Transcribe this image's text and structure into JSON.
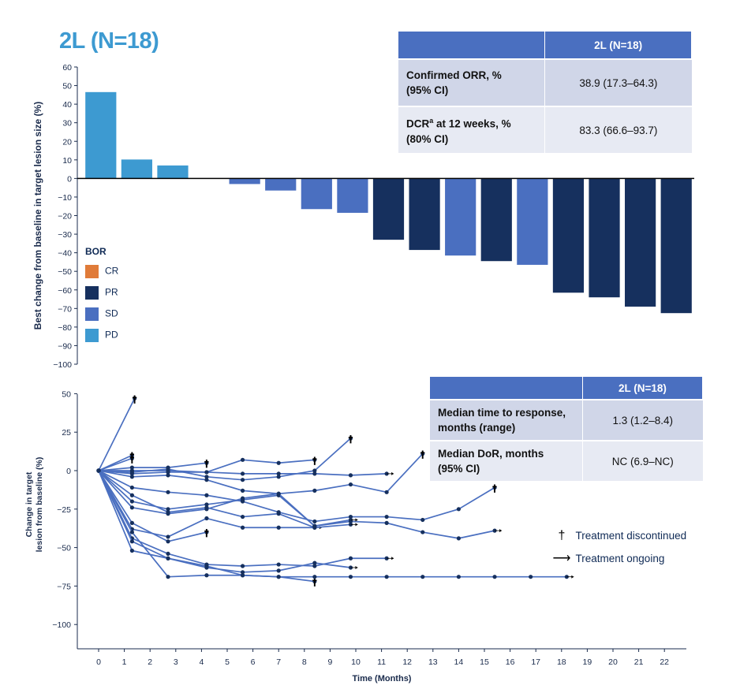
{
  "panel_title": "2L (N=18)",
  "table_top": {
    "header": [
      "",
      "2L (N=18)"
    ],
    "rows": [
      {
        "label_line1": "Confirmed ORR, %",
        "label_line2": "(95% CI)",
        "value": "38.9 (17.3–64.3)"
      },
      {
        "label_line1": "DCR",
        "label_sup": "a",
        "label_line1_rest": " at 12 weeks, %",
        "label_line2": "(80% CI)",
        "value": "83.3 (66.6–93.7)"
      }
    ]
  },
  "table_bottom": {
    "header": [
      "",
      "2L (N=18)"
    ],
    "rows": [
      {
        "label_line1": "Median time to response,",
        "label_line2": "months (range)",
        "value": "1.3 (1.2–8.4)"
      },
      {
        "label_line1": "Median DoR, months",
        "label_line2": "(95% CI)",
        "value": "NC (6.9–NC)"
      }
    ]
  },
  "legend_bor": {
    "title": "BOR",
    "items": [
      {
        "label": "CR",
        "color": "#e07b39"
      },
      {
        "label": "PR",
        "color": "#16305e"
      },
      {
        "label": "SD",
        "color": "#4a6fc0"
      },
      {
        "label": "PD",
        "color": "#3d9ad1"
      }
    ]
  },
  "legend_spider": [
    {
      "symbol": "†",
      "label": "Treatment discontinued"
    },
    {
      "symbol": "⟶",
      "label": "Treatment ongoing"
    }
  ],
  "chart_data": [
    {
      "type": "bar",
      "subtype": "waterfall",
      "ylabel": "Best change from baseline in target lesion size (%)",
      "ylim": [
        -100,
        60
      ],
      "yticks": [
        60,
        50,
        40,
        30,
        20,
        10,
        0,
        -10,
        -20,
        -30,
        -40,
        -50,
        -60,
        -70,
        -80,
        -90,
        -100
      ],
      "bars": [
        {
          "value": 46.5,
          "bor": "PD"
        },
        {
          "value": 10.2,
          "bor": "PD"
        },
        {
          "value": 7.0,
          "bor": "PD"
        },
        {
          "value": 0.0,
          "bor": "SD"
        },
        {
          "value": -3.0,
          "bor": "SD"
        },
        {
          "value": -6.5,
          "bor": "SD"
        },
        {
          "value": -16.5,
          "bor": "SD"
        },
        {
          "value": -18.5,
          "bor": "SD"
        },
        {
          "value": -33.0,
          "bor": "PR"
        },
        {
          "value": -38.5,
          "bor": "PR"
        },
        {
          "value": -41.5,
          "bor": "SD"
        },
        {
          "value": -44.5,
          "bor": "PR"
        },
        {
          "value": -46.5,
          "bor": "SD"
        },
        {
          "value": -61.5,
          "bor": "PR"
        },
        {
          "value": -64.0,
          "bor": "PR"
        },
        {
          "value": -69.0,
          "bor": "PR"
        },
        {
          "value": -72.5,
          "bor": "PR"
        }
      ],
      "legend": "left"
    },
    {
      "type": "line",
      "subtype": "spider",
      "xlabel": "Time (Months)",
      "ylabel": "Change in target lesion from baseline (%)",
      "xlim": [
        -0.8,
        23.5
      ],
      "ylim": [
        -115,
        50
      ],
      "xticks": [
        0,
        1,
        2,
        3,
        4,
        5,
        6,
        7,
        8,
        9,
        10,
        11,
        12,
        13,
        14,
        15,
        16,
        17,
        18,
        19,
        20,
        21,
        22
      ],
      "yticks": [
        50,
        25,
        0,
        -25,
        -50,
        -75,
        -100
      ],
      "series": [
        {
          "points": [
            [
              0,
              0
            ],
            [
              1.4,
              47
            ]
          ],
          "end": "discontinued"
        },
        {
          "points": [
            [
              0,
              0
            ],
            [
              1.3,
              10
            ]
          ],
          "end": "discontinued"
        },
        {
          "points": [
            [
              0,
              0
            ],
            [
              1.3,
              8
            ]
          ],
          "end": "discontinued"
        },
        {
          "points": [
            [
              0,
              0
            ],
            [
              1.3,
              2
            ],
            [
              2.7,
              2
            ],
            [
              4.2,
              5
            ]
          ],
          "end": "discontinued"
        },
        {
          "points": [
            [
              0,
              0
            ],
            [
              1.3,
              0
            ],
            [
              2.7,
              0
            ],
            [
              4.2,
              -1
            ],
            [
              5.6,
              7
            ],
            [
              7.0,
              5
            ],
            [
              8.4,
              7
            ]
          ],
          "end": "discontinued"
        },
        {
          "points": [
            [
              0,
              0
            ],
            [
              1.3,
              -1
            ],
            [
              2.7,
              1
            ],
            [
              4.2,
              -4
            ],
            [
              5.6,
              -6
            ],
            [
              7.0,
              -4
            ],
            [
              8.4,
              0
            ],
            [
              9.8,
              21
            ]
          ],
          "end": "discontinued"
        },
        {
          "points": [
            [
              0,
              0
            ],
            [
              1.3,
              -2
            ],
            [
              2.7,
              -1
            ],
            [
              4.2,
              -1
            ],
            [
              5.6,
              -2
            ],
            [
              7.0,
              -2
            ],
            [
              8.4,
              -2
            ],
            [
              9.8,
              -3
            ],
            [
              11.2,
              -2
            ]
          ],
          "end": "ongoing"
        },
        {
          "points": [
            [
              0,
              0
            ],
            [
              1.3,
              -4
            ],
            [
              2.7,
              -3
            ],
            [
              4.2,
              -6
            ],
            [
              5.6,
              -13
            ],
            [
              7.0,
              -15
            ],
            [
              8.4,
              -13
            ],
            [
              9.8,
              -9
            ],
            [
              11.2,
              -14
            ],
            [
              12.6,
              11
            ]
          ],
          "end": "discontinued"
        },
        {
          "points": [
            [
              0,
              0
            ],
            [
              1.3,
              -11
            ],
            [
              2.7,
              -14
            ],
            [
              4.2,
              -16
            ],
            [
              5.6,
              -20
            ],
            [
              7.0,
              -27
            ],
            [
              8.4,
              -33
            ],
            [
              9.8,
              -30
            ],
            [
              11.2,
              -30
            ],
            [
              12.6,
              -32
            ],
            [
              14.0,
              -25
            ],
            [
              15.4,
              -11
            ]
          ],
          "end": "discontinued"
        },
        {
          "points": [
            [
              0,
              0
            ],
            [
              1.3,
              -16
            ],
            [
              2.7,
              -27
            ],
            [
              4.2,
              -24
            ],
            [
              5.6,
              -30
            ],
            [
              7.0,
              -28
            ],
            [
              8.4,
              -37
            ]
          ],
          "end": "ongoing"
        },
        {
          "points": [
            [
              0,
              0
            ],
            [
              1.3,
              -20
            ],
            [
              2.7,
              -25
            ],
            [
              4.2,
              -22
            ],
            [
              5.6,
              -19
            ],
            [
              7.0,
              -16
            ],
            [
              8.4,
              -36
            ],
            [
              9.8,
              -33
            ],
            [
              11.2,
              -34
            ],
            [
              12.6,
              -40
            ],
            [
              14.0,
              -44
            ],
            [
              15.4,
              -39
            ]
          ],
          "end": "ongoing"
        },
        {
          "points": [
            [
              0,
              0
            ],
            [
              1.3,
              -24
            ],
            [
              2.7,
              -28
            ],
            [
              4.2,
              -25
            ],
            [
              5.6,
              -18
            ],
            [
              7.0,
              -15
            ],
            [
              8.4,
              -36
            ],
            [
              9.8,
              -32
            ]
          ],
          "end": "ongoing"
        },
        {
          "points": [
            [
              0,
              0
            ],
            [
              1.3,
              -34
            ],
            [
              2.7,
              -46
            ],
            [
              4.2,
              -40
            ]
          ],
          "end": "discontinued"
        },
        {
          "points": [
            [
              0,
              0
            ],
            [
              1.3,
              -38
            ],
            [
              2.7,
              -43
            ],
            [
              4.2,
              -31
            ],
            [
              5.6,
              -37
            ],
            [
              7.0,
              -37
            ],
            [
              8.4,
              -37
            ],
            [
              9.8,
              -35
            ]
          ],
          "end": "ongoing"
        },
        {
          "points": [
            [
              0,
              0
            ],
            [
              1.3,
              -44
            ],
            [
              2.7,
              -54
            ],
            [
              4.2,
              -61
            ],
            [
              5.6,
              -62
            ],
            [
              7.0,
              -61
            ],
            [
              8.4,
              -62
            ],
            [
              9.8,
              -57
            ],
            [
              11.2,
              -57
            ]
          ],
          "end": "ongoing"
        },
        {
          "points": [
            [
              0,
              0
            ],
            [
              1.3,
              -46
            ],
            [
              2.7,
              -57
            ],
            [
              4.2,
              -63
            ],
            [
              5.6,
              -66
            ],
            [
              7.0,
              -65
            ],
            [
              8.4,
              -60
            ],
            [
              9.8,
              -63
            ]
          ],
          "end": "ongoing"
        },
        {
          "points": [
            [
              0,
              0
            ],
            [
              1.3,
              -52
            ],
            [
              2.7,
              -57
            ],
            [
              4.2,
              -62
            ],
            [
              5.6,
              -68
            ],
            [
              7.0,
              -69
            ],
            [
              8.4,
              -72
            ]
          ],
          "end": "discontinued"
        },
        {
          "points": [
            [
              0,
              0
            ],
            [
              1.3,
              -40
            ],
            [
              2.7,
              -69
            ],
            [
              4.2,
              -68
            ],
            [
              5.6,
              -68
            ],
            [
              7.0,
              -69
            ],
            [
              8.4,
              -69
            ],
            [
              9.8,
              -69
            ],
            [
              11.2,
              -69
            ],
            [
              12.6,
              -69
            ],
            [
              14.0,
              -69
            ],
            [
              15.4,
              -69
            ],
            [
              16.8,
              -69
            ],
            [
              18.2,
              -69
            ]
          ],
          "end": "ongoing"
        }
      ]
    }
  ]
}
